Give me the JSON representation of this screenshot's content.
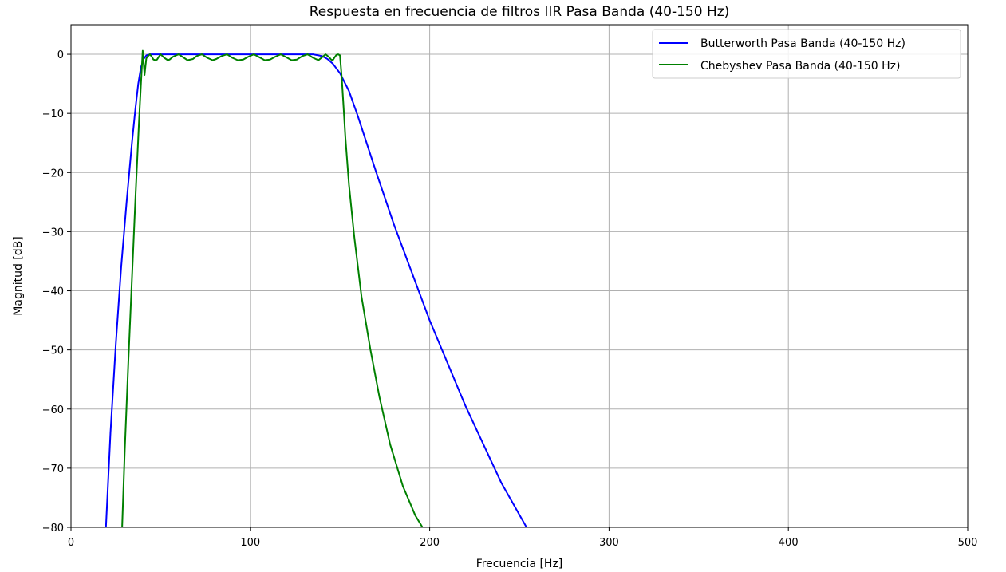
{
  "chart_data": {
    "type": "line",
    "title": "Respuesta en frecuencia de filtros IIR Pasa Banda (40-150 Hz)",
    "xlabel": "Frecuencia [Hz]",
    "ylabel": "Magnitud [dB]",
    "xlim": [
      0,
      500
    ],
    "ylim": [
      -80,
      5
    ],
    "xticks": [
      0,
      100,
      200,
      300,
      400,
      500
    ],
    "xtick_labels": [
      "0",
      "100",
      "200",
      "300",
      "400",
      "500"
    ],
    "yticks": [
      0,
      -10,
      -20,
      -30,
      -40,
      -50,
      -60,
      -70,
      -80
    ],
    "ytick_labels": [
      "0",
      "−10",
      "−20",
      "−30",
      "−40",
      "−50",
      "−60",
      "−70",
      "−80"
    ],
    "grid": true,
    "legend_position": "top-right",
    "series": [
      {
        "name": "Butterworth Pasa Banda (40-150 Hz)",
        "color": "#0000ff",
        "x": [
          19.5,
          22,
          25,
          28,
          31,
          34,
          36,
          37.5,
          39,
          40.5,
          42,
          44,
          47,
          50,
          60,
          80,
          100,
          120,
          135,
          140,
          143,
          146,
          150,
          155,
          160,
          170,
          180,
          200,
          220,
          240,
          254
        ],
        "y": [
          -80,
          -64,
          -49,
          -36,
          -25,
          -15,
          -9,
          -5,
          -2.2,
          -0.8,
          -0.2,
          0,
          0,
          0,
          0,
          0,
          0,
          0,
          0,
          -0.3,
          -0.8,
          -1.6,
          -3.2,
          -6.2,
          -10.5,
          -19.8,
          -28.7,
          -45,
          -59.5,
          -72.5,
          -80
        ]
      },
      {
        "name": "Chebyshev Pasa Banda (40-150 Hz)",
        "color": "#008000",
        "x": [
          28.5,
          30,
          32,
          34,
          36,
          38,
          39,
          40,
          41,
          42,
          43,
          44,
          45,
          46,
          47,
          48,
          49,
          50,
          52,
          54,
          55,
          57,
          60,
          63,
          65,
          68,
          70,
          73,
          76,
          79,
          81,
          84,
          87,
          90,
          93,
          96,
          99,
          102,
          105,
          108,
          111,
          114,
          117,
          120,
          123,
          126,
          129,
          132,
          135,
          138,
          140,
          142,
          144,
          145,
          146,
          147,
          148,
          149,
          150,
          151,
          152,
          153,
          155,
          158,
          162,
          167,
          172,
          178,
          185,
          192,
          196
        ],
        "y": [
          -80,
          -67,
          -52,
          -38,
          -24,
          -11,
          -5,
          0.6,
          -3.5,
          -0.7,
          -0.3,
          0,
          -0.4,
          -0.9,
          -1,
          -0.9,
          -0.4,
          0,
          -0.6,
          -1,
          -0.9,
          -0.4,
          0,
          -0.6,
          -1,
          -0.8,
          -0.3,
          0,
          -0.6,
          -1,
          -0.8,
          -0.3,
          0,
          -0.6,
          -1,
          -0.9,
          -0.4,
          0,
          -0.5,
          -1,
          -0.9,
          -0.4,
          0,
          -0.5,
          -1,
          -0.9,
          -0.3,
          0,
          -0.6,
          -1,
          -0.5,
          0,
          -0.5,
          -0.9,
          -1,
          -0.5,
          -0.1,
          0,
          -0.2,
          -4,
          -9,
          -14,
          -22,
          -31,
          -41,
          -50,
          -58,
          -66,
          -73,
          -78,
          -80
        ]
      }
    ]
  }
}
